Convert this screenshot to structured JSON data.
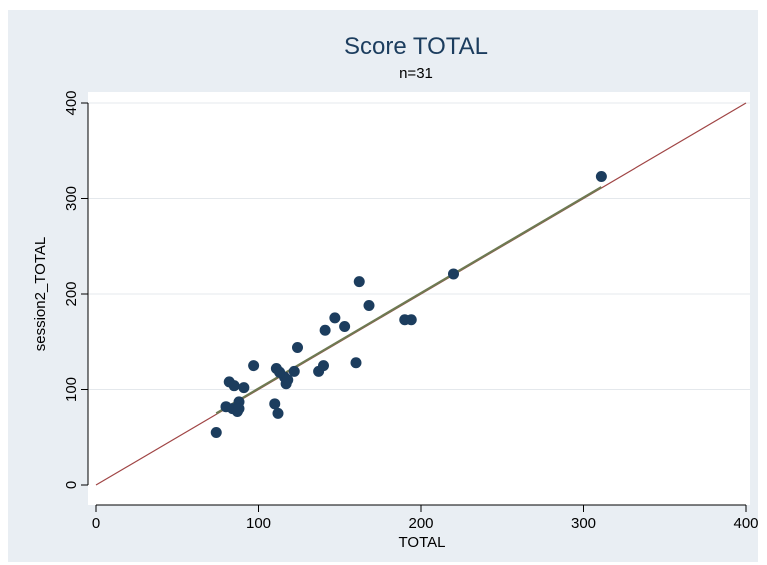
{
  "chart_data": {
    "type": "scatter",
    "title": "Score TOTAL",
    "subtitle": "n=31",
    "xlabel": "TOTAL",
    "ylabel": "session2_TOTAL",
    "xlim": [
      0,
      400
    ],
    "ylim": [
      0,
      400
    ],
    "xticks": [
      "0",
      "100",
      "200",
      "300",
      "400"
    ],
    "yticks": [
      "0",
      "100",
      "200",
      "300",
      "400"
    ],
    "grid": true,
    "colors": {
      "background": "#e9eef3",
      "plot_area": "#ffffff",
      "points": "#1c3d5e",
      "identity_line": "#a04545",
      "fit_line": "#6e7a52",
      "grid": "#e4e8ec"
    },
    "points": [
      {
        "x": 74,
        "y": 55
      },
      {
        "x": 80,
        "y": 82
      },
      {
        "x": 82,
        "y": 108
      },
      {
        "x": 84,
        "y": 80
      },
      {
        "x": 85,
        "y": 104
      },
      {
        "x": 87,
        "y": 77
      },
      {
        "x": 88,
        "y": 87
      },
      {
        "x": 88,
        "y": 80
      },
      {
        "x": 91,
        "y": 102
      },
      {
        "x": 97,
        "y": 125
      },
      {
        "x": 110,
        "y": 85
      },
      {
        "x": 111,
        "y": 122
      },
      {
        "x": 112,
        "y": 75
      },
      {
        "x": 116,
        "y": 113
      },
      {
        "x": 117,
        "y": 106
      },
      {
        "x": 118,
        "y": 110
      },
      {
        "x": 122,
        "y": 119
      },
      {
        "x": 124,
        "y": 144
      },
      {
        "x": 137,
        "y": 119
      },
      {
        "x": 140,
        "y": 125
      },
      {
        "x": 141,
        "y": 162
      },
      {
        "x": 147,
        "y": 175
      },
      {
        "x": 153,
        "y": 166
      },
      {
        "x": 160,
        "y": 128
      },
      {
        "x": 162,
        "y": 213
      },
      {
        "x": 168,
        "y": 188
      },
      {
        "x": 190,
        "y": 173
      },
      {
        "x": 194,
        "y": 173
      },
      {
        "x": 220,
        "y": 221
      },
      {
        "x": 311,
        "y": 323
      },
      {
        "x": 113,
        "y": 118
      }
    ],
    "identity_line": {
      "x": [
        0,
        400
      ],
      "y": [
        0,
        400
      ]
    },
    "fit_line": {
      "x": [
        74,
        311
      ],
      "y": [
        75,
        312
      ]
    }
  }
}
